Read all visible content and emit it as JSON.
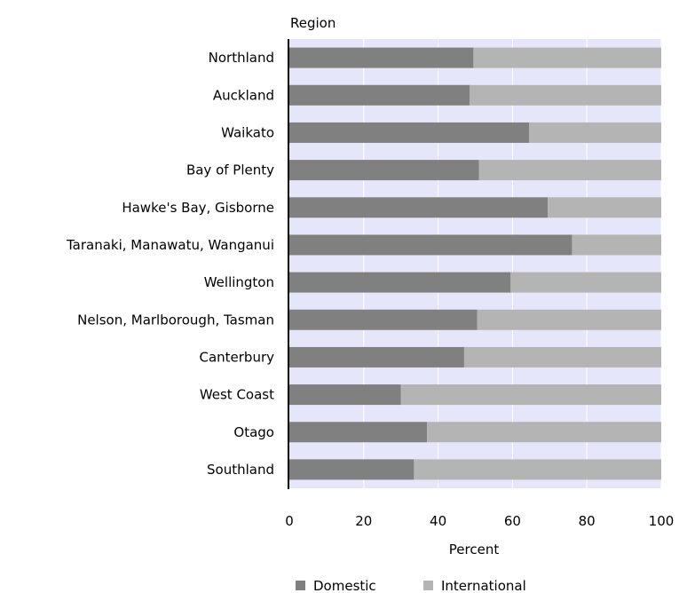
{
  "chart_data": {
    "type": "bar",
    "orientation": "horizontal",
    "stacked": true,
    "title": "",
    "category_axis_label": "Region",
    "xlabel": "Percent",
    "xlim": [
      0,
      100
    ],
    "x_ticks": [
      "0",
      "20",
      "40",
      "60",
      "80",
      "100"
    ],
    "grid": true,
    "legend_position": "bottom",
    "categories": [
      "Northland",
      "Auckland",
      "Waikato",
      "Bay of Plenty",
      "Hawke's Bay, Gisborne",
      "Taranaki, Manawatu, Wanganui",
      "Wellington",
      "Nelson, Marlborough, Tasman",
      "Canterbury",
      "West Coast",
      "Otago",
      "Southland"
    ],
    "series": [
      {
        "name": "Domestic",
        "color": "#808080",
        "values": [
          49.5,
          48.5,
          64.5,
          51,
          69.5,
          76,
          59.5,
          50.5,
          47,
          30,
          37,
          33.5
        ]
      },
      {
        "name": "International",
        "color": "#b4b4b4",
        "values": [
          50.5,
          51.5,
          35.5,
          49,
          30.5,
          24,
          40.5,
          49.5,
          53,
          70,
          63,
          66.5
        ]
      }
    ],
    "colors": {
      "plot_background": "#e6e6fa",
      "gridline": "#ffffff",
      "axis": "#000000"
    }
  }
}
